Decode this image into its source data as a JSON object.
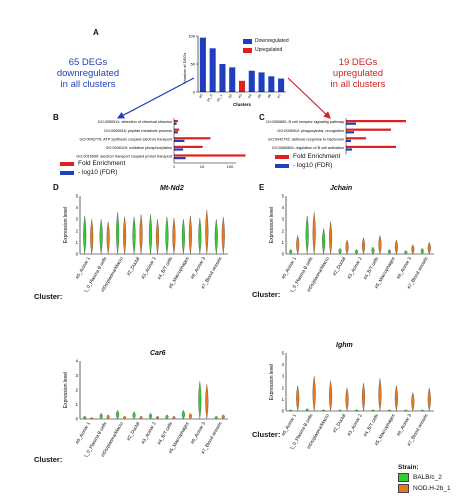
{
  "colors": {
    "blue": "#1f3fbf",
    "red": "#e02020",
    "balb": "#33cc33",
    "nod": "#e87a1a"
  },
  "panel_labels": {
    "a": "A",
    "b": "B",
    "c": "C",
    "d": "D",
    "e": "E"
  },
  "annotations": {
    "left": [
      "65 DEGs",
      "downregulated",
      "in all clusters"
    ],
    "right": [
      "19 DEGs",
      "upregulated",
      "in all clusters"
    ]
  },
  "chart_data": [
    {
      "type": "bar",
      "panel": "A",
      "ylabel": "Number of DEGs",
      "xlabel": "Clusters",
      "ylim": [
        0,
        100
      ],
      "yticks": [
        0,
        50,
        100
      ],
      "categories": [
        "#0",
        "#1_0",
        "#1_1",
        "#2",
        "#3",
        "#4",
        "#5",
        "#6",
        "#7"
      ],
      "series": [
        {
          "name": "Downregulated",
          "values": [
            97,
            78,
            50,
            44,
            28,
            38,
            35,
            28,
            24
          ]
        },
        {
          "name": "Upregulated",
          "values": [
            0,
            0,
            0,
            0,
            20,
            0,
            0,
            0,
            0
          ]
        }
      ],
      "legend": "top-right"
    },
    {
      "type": "bar",
      "panel": "B",
      "orientation": "horizontal",
      "xlabel": "-log10 (FDR)",
      "xticks": [
        "1",
        "10",
        "100"
      ],
      "categories": [
        "GO:0050911: detection of chemical stimulus",
        "GO:0006518: peptide metabolic process",
        "GO:0042776: ATP synthesis coupled electron transport",
        "GO:0006119: oxidative phosphorylation",
        "GO:0015990: electron transport coupled proton transport"
      ],
      "series": [
        {
          "name": "Fold Enrichment",
          "values": [
            3,
            4,
            28,
            22,
            55
          ]
        },
        {
          "name": "- log10 (FDR)",
          "values": [
            2,
            3,
            8,
            7,
            9
          ]
        }
      ],
      "legend": [
        "Fold Enrichment",
        "- log10 (FDR)"
      ]
    },
    {
      "type": "bar",
      "panel": "C",
      "orientation": "horizontal",
      "categories": [
        "GO:0050850: B cell receptor signaling pathway",
        "GO:0006910: phagocytosis, recognition",
        "GO:0042742: defense response to bacterium",
        "GO:0050864: regulation of B cell activation"
      ],
      "series": [
        {
          "name": "Fold Enrichment",
          "values": [
            60,
            45,
            20,
            50
          ]
        },
        {
          "name": "- log10 (FDR)",
          "values": [
            10,
            8,
            5,
            6
          ]
        }
      ],
      "legend": [
        "Fold Enrichment",
        "- log10 (FDR)"
      ]
    }
  ],
  "violins": {
    "clusters": [
      "#0_Acinar 1",
      "#1_0_Plasma B cells",
      "#1_1_mDs/plasma/Macro",
      "#2_Ductal",
      "#3_Acinar 2",
      "#4_B/T cells",
      "#5_Macrophages",
      "#6_Acinar 3",
      "#7_Blood vessels"
    ],
    "cluster_label": "Cluster:",
    "ylabel": "Expression level",
    "panels": [
      {
        "id": "mtnd2",
        "gene": "Mt-Nd2",
        "yticks": [
          "0",
          "1",
          "2",
          "3",
          "4",
          "5"
        ]
      },
      {
        "id": "car6",
        "gene": "Car6",
        "yticks": [
          "0",
          "1",
          "2",
          "3",
          "4"
        ]
      },
      {
        "id": "jchain",
        "gene": "Jchain",
        "yticks": [
          "0",
          "1",
          "2",
          "3",
          "4",
          "5"
        ]
      },
      {
        "id": "ighm",
        "gene": "Ighm",
        "yticks": [
          "0",
          "1",
          "2",
          "3",
          "4",
          "5"
        ]
      }
    ]
  },
  "strain_legend": {
    "title": "Strain:",
    "items": [
      "BALB/c_2",
      "NOD.H-2b_1"
    ]
  }
}
